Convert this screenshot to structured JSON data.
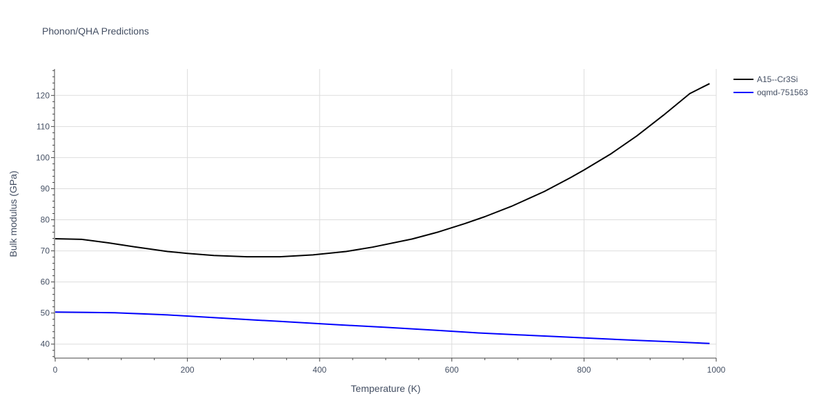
{
  "chart_data": {
    "type": "line",
    "title": "Phonon/QHA Predictions",
    "xlabel": "Temperature (K)",
    "ylabel": "Bulk modulus (GPa)",
    "xlim": [
      0,
      1000
    ],
    "ylim": [
      35.5,
      128.5
    ],
    "x_ticks": [
      0,
      200,
      400,
      600,
      800,
      1000
    ],
    "y_ticks": [
      40,
      50,
      60,
      70,
      80,
      90,
      100,
      110,
      120
    ],
    "grid": true,
    "legend_position": "top-right outside",
    "series": [
      {
        "name": "A15--Cr3Si",
        "color": "#000000",
        "x": [
          0,
          40,
          80,
          120,
          170,
          200,
          240,
          290,
          340,
          390,
          440,
          480,
          540,
          580,
          620,
          650,
          690,
          740,
          780,
          800,
          840,
          880,
          920,
          960,
          990
        ],
        "y": [
          73.9,
          73.7,
          72.6,
          71.3,
          69.8,
          69.2,
          68.5,
          68.1,
          68.1,
          68.7,
          69.8,
          71.2,
          73.8,
          76.1,
          78.8,
          81.0,
          84.3,
          89.1,
          93.6,
          96.0,
          101.1,
          107.0,
          113.6,
          120.6,
          123.8
        ]
      },
      {
        "name": "oqmd-751563",
        "color": "#0000ff",
        "x": [
          0,
          90,
          170,
          250,
          340,
          420,
          500,
          580,
          640,
          700,
          760,
          820,
          880,
          940,
          990
        ],
        "y": [
          50.3,
          50.1,
          49.4,
          48.4,
          47.3,
          46.3,
          45.4,
          44.4,
          43.6,
          43.0,
          42.4,
          41.8,
          41.2,
          40.7,
          40.2
        ]
      }
    ]
  }
}
